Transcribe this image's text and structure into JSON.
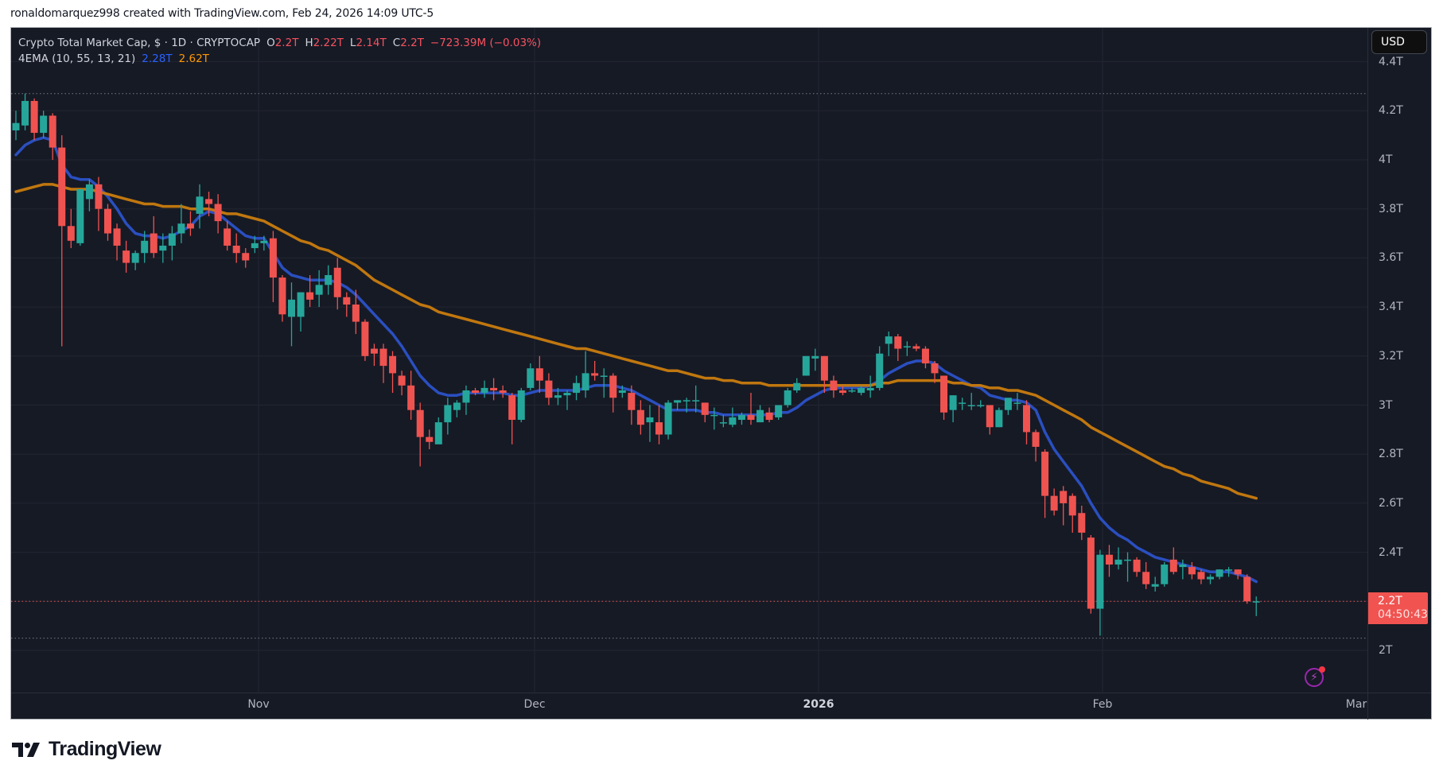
{
  "attribution": "ronaldomarquez998 created with TradingView.com, Feb 24, 2026 14:09 UTC-5",
  "legend": {
    "symbol": "Crypto Total Market Cap, $ · 1D · CRYPTOCAP",
    "open_label": "O",
    "open": "2.2T",
    "high_label": "H",
    "high": "2.22T",
    "low_label": "L",
    "low": "2.14T",
    "close_label": "C",
    "close": "2.2T",
    "change": "−723.39M (−0.03%)",
    "indicator": "4EMA (10, 55, 13, 21)",
    "ema_fast": "2.28T",
    "ema_slow": "2.62T"
  },
  "price_axis": {
    "currency": "USD",
    "ticks": [
      "4.4T",
      "4.2T",
      "4T",
      "3.8T",
      "3.6T",
      "3.4T",
      "3.2T",
      "3T",
      "2.8T",
      "2.6T",
      "2.4T",
      "2T"
    ],
    "last_price": "2.2T",
    "countdown": "04:50:43"
  },
  "time_axis": {
    "labels": [
      "Nov",
      "Dec",
      "2026",
      "Feb",
      "Mar"
    ]
  },
  "brand": {
    "name": "TradingView"
  },
  "colors": {
    "background": "#161a25",
    "up": "#26a69a",
    "down": "#ef5350",
    "ema_fast": "#2a4fc0",
    "ema_slow": "#c0770f",
    "grid": "#232632",
    "last_price": "#f05350"
  },
  "chart_data": {
    "type": "candlestick",
    "title": "Crypto Total Market Cap, $ · 1D · CRYPTOCAP",
    "x_start": "2025-10-06",
    "x_end": "2026-02-24",
    "ylabel": "USD",
    "ylim": [
      1.85,
      4.45
    ],
    "y_ticks": [
      2.0,
      2.2,
      2.4,
      2.6,
      2.8,
      3.0,
      3.2,
      3.4,
      3.6,
      3.8,
      4.0,
      4.2,
      4.4
    ],
    "x_ticks": [
      "Nov",
      "Dec",
      "2026",
      "Feb",
      "Mar"
    ],
    "high_marker": 4.27,
    "low_marker": 2.05,
    "last_price": 2.2,
    "candles_ohlc": [
      [
        4.12,
        4.2,
        4.08,
        4.15
      ],
      [
        4.14,
        4.27,
        4.12,
        4.24
      ],
      [
        4.24,
        4.25,
        4.08,
        4.11
      ],
      [
        4.11,
        4.2,
        4.09,
        4.18
      ],
      [
        4.18,
        4.19,
        4.0,
        4.05
      ],
      [
        4.05,
        4.1,
        3.24,
        3.73
      ],
      [
        3.73,
        3.8,
        3.64,
        3.67
      ],
      [
        3.66,
        3.88,
        3.65,
        3.88
      ],
      [
        3.84,
        3.92,
        3.79,
        3.9
      ],
      [
        3.9,
        3.93,
        3.71,
        3.8
      ],
      [
        3.8,
        3.82,
        3.67,
        3.7
      ],
      [
        3.72,
        3.74,
        3.59,
        3.65
      ],
      [
        3.63,
        3.67,
        3.54,
        3.58
      ],
      [
        3.58,
        3.63,
        3.55,
        3.62
      ],
      [
        3.62,
        3.71,
        3.58,
        3.67
      ],
      [
        3.7,
        3.77,
        3.6,
        3.62
      ],
      [
        3.63,
        3.7,
        3.58,
        3.65
      ],
      [
        3.65,
        3.73,
        3.59,
        3.7
      ],
      [
        3.7,
        3.82,
        3.66,
        3.74
      ],
      [
        3.74,
        3.79,
        3.69,
        3.72
      ],
      [
        3.78,
        3.9,
        3.72,
        3.85
      ],
      [
        3.84,
        3.87,
        3.77,
        3.82
      ],
      [
        3.82,
        3.86,
        3.7,
        3.75
      ],
      [
        3.72,
        3.75,
        3.63,
        3.65
      ],
      [
        3.65,
        3.7,
        3.58,
        3.62
      ],
      [
        3.62,
        3.64,
        3.56,
        3.59
      ],
      [
        3.64,
        3.69,
        3.62,
        3.66
      ],
      [
        3.66,
        3.69,
        3.63,
        3.67
      ],
      [
        3.68,
        3.71,
        3.42,
        3.52
      ],
      [
        3.52,
        3.53,
        3.34,
        3.37
      ],
      [
        3.36,
        3.5,
        3.24,
        3.43
      ],
      [
        3.36,
        3.46,
        3.3,
        3.46
      ],
      [
        3.46,
        3.53,
        3.4,
        3.43
      ],
      [
        3.45,
        3.55,
        3.4,
        3.49
      ],
      [
        3.49,
        3.57,
        3.45,
        3.53
      ],
      [
        3.56,
        3.6,
        3.39,
        3.44
      ],
      [
        3.44,
        3.46,
        3.36,
        3.41
      ],
      [
        3.41,
        3.47,
        3.29,
        3.34
      ],
      [
        3.34,
        3.35,
        3.18,
        3.2
      ],
      [
        3.23,
        3.25,
        3.16,
        3.21
      ],
      [
        3.23,
        3.25,
        3.09,
        3.16
      ],
      [
        3.2,
        3.22,
        3.05,
        3.13
      ],
      [
        3.12,
        3.14,
        3.04,
        3.08
      ],
      [
        3.08,
        3.14,
        2.94,
        2.98
      ],
      [
        2.98,
        3.01,
        2.75,
        2.87
      ],
      [
        2.87,
        2.9,
        2.82,
        2.85
      ],
      [
        2.84,
        2.95,
        2.85,
        2.93
      ],
      [
        2.93,
        3.03,
        2.88,
        3.0
      ],
      [
        2.98,
        3.02,
        2.95,
        3.01
      ],
      [
        3.01,
        3.08,
        2.96,
        3.06
      ],
      [
        3.06,
        3.07,
        3.04,
        3.05
      ],
      [
        3.05,
        3.1,
        3.03,
        3.07
      ],
      [
        3.07,
        3.11,
        3.02,
        3.06
      ],
      [
        3.06,
        3.08,
        3.03,
        3.05
      ],
      [
        3.04,
        3.05,
        2.84,
        2.94
      ],
      [
        2.94,
        3.07,
        2.93,
        3.06
      ],
      [
        3.07,
        3.17,
        3.06,
        3.15
      ],
      [
        3.15,
        3.2,
        3.05,
        3.1
      ],
      [
        3.1,
        3.13,
        3.0,
        3.03
      ],
      [
        3.03,
        3.07,
        3.0,
        3.04
      ],
      [
        3.04,
        3.06,
        2.98,
        3.05
      ],
      [
        3.05,
        3.12,
        3.02,
        3.09
      ],
      [
        3.06,
        3.22,
        3.03,
        3.13
      ],
      [
        3.13,
        3.18,
        3.1,
        3.12
      ],
      [
        3.12,
        3.15,
        3.03,
        3.12
      ],
      [
        3.12,
        3.13,
        2.97,
        3.03
      ],
      [
        3.05,
        3.08,
        3.03,
        3.06
      ],
      [
        3.05,
        3.08,
        2.92,
        2.98
      ],
      [
        2.98,
        3.02,
        2.88,
        2.92
      ],
      [
        2.93,
        3.0,
        2.85,
        2.95
      ],
      [
        2.93,
        3.0,
        2.84,
        2.88
      ],
      [
        2.88,
        3.02,
        2.86,
        3.01
      ],
      [
        3.01,
        3.02,
        2.98,
        3.02
      ],
      [
        3.02,
        3.03,
        2.97,
        3.02
      ],
      [
        3.02,
        3.08,
        2.97,
        3.02
      ],
      [
        3.01,
        3.01,
        2.93,
        2.96
      ],
      [
        2.96,
        2.99,
        2.9,
        2.96
      ],
      [
        2.93,
        2.96,
        2.91,
        2.93
      ],
      [
        2.92,
        2.99,
        2.91,
        2.95
      ],
      [
        2.94,
        2.97,
        2.92,
        2.96
      ],
      [
        2.96,
        3.05,
        2.92,
        2.94
      ],
      [
        2.93,
        3.0,
        2.93,
        2.98
      ],
      [
        2.97,
        2.99,
        2.93,
        2.94
      ],
      [
        2.95,
        3.0,
        2.94,
        3.0
      ],
      [
        3.0,
        3.07,
        2.99,
        3.06
      ],
      [
        3.06,
        3.11,
        3.05,
        3.09
      ],
      [
        3.12,
        3.2,
        3.12,
        3.2
      ],
      [
        3.19,
        3.23,
        3.14,
        3.2
      ],
      [
        3.2,
        3.2,
        3.05,
        3.1
      ],
      [
        3.1,
        3.12,
        3.03,
        3.06
      ],
      [
        3.06,
        3.08,
        3.04,
        3.05
      ],
      [
        3.06,
        3.07,
        3.05,
        3.06
      ],
      [
        3.05,
        3.08,
        3.04,
        3.07
      ],
      [
        3.06,
        3.12,
        3.03,
        3.07
      ],
      [
        3.07,
        3.24,
        3.06,
        3.21
      ],
      [
        3.25,
        3.3,
        3.2,
        3.28
      ],
      [
        3.28,
        3.29,
        3.18,
        3.23
      ],
      [
        3.24,
        3.26,
        3.2,
        3.24
      ],
      [
        3.24,
        3.25,
        3.22,
        3.23
      ],
      [
        3.23,
        3.24,
        3.15,
        3.17
      ],
      [
        3.17,
        3.18,
        3.09,
        3.13
      ],
      [
        3.12,
        3.12,
        2.94,
        2.97
      ],
      [
        2.98,
        3.04,
        2.93,
        3.04
      ],
      [
        3.01,
        3.03,
        2.98,
        3.01
      ],
      [
        3.0,
        3.05,
        2.98,
        3.0
      ],
      [
        3.0,
        3.02,
        2.99,
        3.0
      ],
      [
        3.0,
        3.0,
        2.88,
        2.91
      ],
      [
        2.91,
        2.99,
        2.91,
        2.98
      ],
      [
        2.98,
        3.01,
        2.96,
        3.03
      ],
      [
        3.01,
        3.05,
        2.98,
        3.01
      ],
      [
        3.0,
        3.02,
        2.84,
        2.89
      ],
      [
        2.89,
        2.9,
        2.77,
        2.83
      ],
      [
        2.81,
        2.82,
        2.54,
        2.63
      ],
      [
        2.63,
        2.66,
        2.55,
        2.57
      ],
      [
        2.65,
        2.67,
        2.51,
        2.6
      ],
      [
        2.63,
        2.64,
        2.48,
        2.55
      ],
      [
        2.56,
        2.59,
        2.45,
        2.48
      ],
      [
        2.46,
        2.47,
        2.15,
        2.17
      ],
      [
        2.17,
        2.41,
        2.06,
        2.39
      ],
      [
        2.39,
        2.43,
        2.3,
        2.35
      ],
      [
        2.35,
        2.42,
        2.33,
        2.37
      ],
      [
        2.37,
        2.4,
        2.28,
        2.37
      ],
      [
        2.37,
        2.38,
        2.3,
        2.32
      ],
      [
        2.32,
        2.36,
        2.25,
        2.27
      ],
      [
        2.26,
        2.3,
        2.24,
        2.27
      ],
      [
        2.27,
        2.36,
        2.26,
        2.35
      ],
      [
        2.37,
        2.42,
        2.31,
        2.32
      ],
      [
        2.34,
        2.37,
        2.29,
        2.35
      ],
      [
        2.34,
        2.36,
        2.29,
        2.31
      ],
      [
        2.32,
        2.33,
        2.27,
        2.29
      ],
      [
        2.29,
        2.31,
        2.27,
        2.3
      ],
      [
        2.3,
        2.33,
        2.29,
        2.33
      ],
      [
        2.33,
        2.34,
        2.3,
        2.33
      ],
      [
        2.33,
        2.33,
        2.29,
        2.31
      ],
      [
        2.3,
        2.31,
        2.19,
        2.2
      ],
      [
        2.2,
        2.22,
        2.14,
        2.2
      ]
    ],
    "series": [
      {
        "name": "EMA fast",
        "color": "#2a4fc0",
        "last": 2.28,
        "values": [
          4.02,
          4.06,
          4.08,
          4.09,
          4.08,
          3.98,
          3.93,
          3.92,
          3.92,
          3.89,
          3.85,
          3.8,
          3.74,
          3.7,
          3.69,
          3.69,
          3.68,
          3.69,
          3.71,
          3.73,
          3.77,
          3.79,
          3.78,
          3.75,
          3.72,
          3.69,
          3.68,
          3.68,
          3.62,
          3.56,
          3.53,
          3.52,
          3.51,
          3.51,
          3.51,
          3.5,
          3.48,
          3.45,
          3.41,
          3.37,
          3.33,
          3.29,
          3.24,
          3.18,
          3.12,
          3.08,
          3.05,
          3.04,
          3.04,
          3.05,
          3.05,
          3.05,
          3.05,
          3.05,
          3.04,
          3.04,
          3.05,
          3.06,
          3.06,
          3.06,
          3.06,
          3.06,
          3.07,
          3.08,
          3.08,
          3.08,
          3.07,
          3.06,
          3.04,
          3.02,
          3.0,
          2.98,
          2.98,
          2.98,
          2.98,
          2.97,
          2.97,
          2.96,
          2.96,
          2.96,
          2.96,
          2.96,
          2.96,
          2.97,
          2.97,
          2.99,
          3.02,
          3.04,
          3.06,
          3.07,
          3.07,
          3.07,
          3.07,
          3.08,
          3.1,
          3.13,
          3.15,
          3.17,
          3.18,
          3.18,
          3.17,
          3.14,
          3.12,
          3.1,
          3.08,
          3.07,
          3.04,
          3.03,
          3.02,
          3.02,
          3.01,
          2.98,
          2.89,
          2.82,
          2.77,
          2.72,
          2.67,
          2.6,
          2.54,
          2.5,
          2.47,
          2.45,
          2.42,
          2.4,
          2.38,
          2.37,
          2.36,
          2.35,
          2.34,
          2.33,
          2.32,
          2.32,
          2.32,
          2.31,
          2.3,
          2.28
        ]
      },
      {
        "name": "EMA slow",
        "color": "#c0770f",
        "last": 2.62,
        "values": [
          3.87,
          3.88,
          3.89,
          3.9,
          3.9,
          3.89,
          3.88,
          3.88,
          3.88,
          3.87,
          3.86,
          3.85,
          3.84,
          3.83,
          3.82,
          3.82,
          3.81,
          3.81,
          3.81,
          3.8,
          3.8,
          3.8,
          3.79,
          3.78,
          3.78,
          3.77,
          3.76,
          3.75,
          3.73,
          3.71,
          3.69,
          3.67,
          3.66,
          3.64,
          3.63,
          3.61,
          3.59,
          3.57,
          3.54,
          3.51,
          3.49,
          3.47,
          3.45,
          3.43,
          3.41,
          3.4,
          3.38,
          3.37,
          3.36,
          3.35,
          3.34,
          3.33,
          3.32,
          3.31,
          3.3,
          3.29,
          3.28,
          3.27,
          3.26,
          3.25,
          3.24,
          3.23,
          3.23,
          3.22,
          3.21,
          3.2,
          3.19,
          3.18,
          3.17,
          3.16,
          3.15,
          3.14,
          3.14,
          3.13,
          3.12,
          3.11,
          3.11,
          3.1,
          3.1,
          3.09,
          3.09,
          3.09,
          3.08,
          3.08,
          3.08,
          3.08,
          3.08,
          3.08,
          3.08,
          3.08,
          3.08,
          3.08,
          3.08,
          3.08,
          3.09,
          3.09,
          3.1,
          3.1,
          3.1,
          3.1,
          3.1,
          3.1,
          3.09,
          3.09,
          3.08,
          3.08,
          3.07,
          3.07,
          3.06,
          3.06,
          3.05,
          3.04,
          3.02,
          3.0,
          2.98,
          2.96,
          2.94,
          2.91,
          2.89,
          2.87,
          2.85,
          2.83,
          2.81,
          2.79,
          2.77,
          2.75,
          2.74,
          2.72,
          2.71,
          2.69,
          2.68,
          2.67,
          2.66,
          2.64,
          2.63,
          2.62
        ]
      }
    ]
  }
}
